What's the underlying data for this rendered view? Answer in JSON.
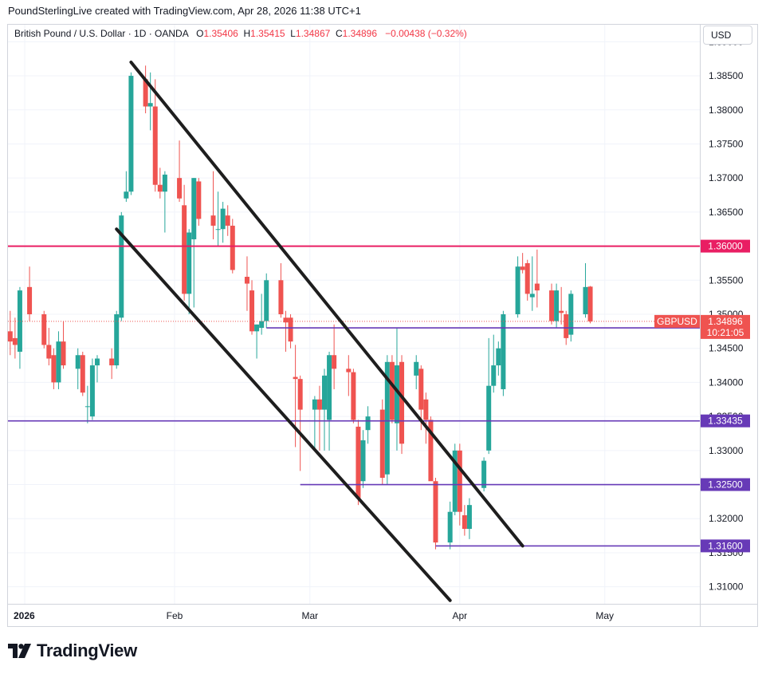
{
  "header": {
    "text": "PoundSterlingLive created with TradingView.com, Apr 28, 2026 11:38 UTC+1"
  },
  "legend": {
    "symbol": "British Pound / U.S. Dollar · 1D · OANDA",
    "o_label": "O",
    "o": "1.35406",
    "h_label": "H",
    "h": "1.35415",
    "l_label": "L",
    "l": "1.34867",
    "c_label": "C",
    "c": "1.34896",
    "change": "−0.00438 (−0.32%)"
  },
  "currency": "USD",
  "logo_text": "TradingView",
  "colors": {
    "up": "#26a69a",
    "down": "#ef5350",
    "resistance": "#e91e63",
    "support": "#673ab7",
    "channel": "#1e1e1e",
    "current": "#ef5350"
  },
  "chart_data": {
    "type": "candlestick",
    "symbol": "GBPUSD",
    "timeframe": "1D",
    "ylim": [
      1.3075,
      1.3925
    ],
    "y_ticks": [
      "1.39000",
      "1.38500",
      "1.38000",
      "1.37500",
      "1.37000",
      "1.36500",
      "1.36000",
      "1.35500",
      "1.35000",
      "1.34500",
      "1.34000",
      "1.33500",
      "1.33000",
      "1.32500",
      "1.32000",
      "1.31500",
      "1.31000"
    ],
    "x_labels": [
      {
        "label": "2026",
        "date": "2026-01-01",
        "bold": true
      },
      {
        "label": "Feb",
        "date": "2026-02-01"
      },
      {
        "label": "Mar",
        "date": "2026-03-01"
      },
      {
        "label": "Apr",
        "date": "2026-04-01"
      },
      {
        "label": "May",
        "date": "2026-05-01"
      }
    ],
    "candles": [
      {
        "d": "2025-12-26",
        "o": 1.345,
        "h": 1.3525,
        "l": 1.344,
        "c": 1.349
      },
      {
        "d": "2025-12-29",
        "o": 1.3475,
        "h": 1.3505,
        "l": 1.344,
        "c": 1.346
      },
      {
        "d": "2025-12-30",
        "o": 1.3465,
        "h": 1.3495,
        "l": 1.3435,
        "c": 1.3455
      },
      {
        "d": "2025-12-31",
        "o": 1.3445,
        "h": 1.354,
        "l": 1.342,
        "c": 1.3535
      },
      {
        "d": "2026-01-02",
        "o": 1.354,
        "h": 1.357,
        "l": 1.349,
        "c": 1.35
      },
      {
        "d": "2026-01-05",
        "o": 1.35,
        "h": 1.3505,
        "l": 1.345,
        "c": 1.3455
      },
      {
        "d": "2026-01-06",
        "o": 1.3455,
        "h": 1.348,
        "l": 1.3425,
        "c": 1.3435
      },
      {
        "d": "2026-01-07",
        "o": 1.344,
        "h": 1.345,
        "l": 1.339,
        "c": 1.34
      },
      {
        "d": "2026-01-08",
        "o": 1.34,
        "h": 1.3475,
        "l": 1.339,
        "c": 1.346
      },
      {
        "d": "2026-01-09",
        "o": 1.346,
        "h": 1.349,
        "l": 1.342,
        "c": 1.3425
      },
      {
        "d": "2026-01-12",
        "o": 1.342,
        "h": 1.345,
        "l": 1.339,
        "c": 1.344
      },
      {
        "d": "2026-01-13",
        "o": 1.344,
        "h": 1.3445,
        "l": 1.338,
        "c": 1.3385
      },
      {
        "d": "2026-01-14",
        "o": 1.3365,
        "h": 1.3395,
        "l": 1.334,
        "c": 1.3365
      },
      {
        "d": "2026-01-15",
        "o": 1.335,
        "h": 1.3435,
        "l": 1.3345,
        "c": 1.3425
      },
      {
        "d": "2026-01-16",
        "o": 1.3425,
        "h": 1.344,
        "l": 1.34,
        "c": 1.3435
      },
      {
        "d": "2026-01-19",
        "o": 1.3435,
        "h": 1.345,
        "l": 1.3405,
        "c": 1.3425
      },
      {
        "d": "2026-01-20",
        "o": 1.3425,
        "h": 1.3505,
        "l": 1.342,
        "c": 1.35
      },
      {
        "d": "2026-01-21",
        "o": 1.3495,
        "h": 1.365,
        "l": 1.349,
        "c": 1.3645
      },
      {
        "d": "2026-01-22",
        "o": 1.367,
        "h": 1.371,
        "l": 1.3665,
        "c": 1.368
      },
      {
        "d": "2026-01-23",
        "o": 1.368,
        "h": 1.3855,
        "l": 1.3675,
        "c": 1.385
      },
      {
        "d": "2026-01-26",
        "o": 1.3845,
        "h": 1.3865,
        "l": 1.3795,
        "c": 1.3805
      },
      {
        "d": "2026-01-27",
        "o": 1.3805,
        "h": 1.3855,
        "l": 1.377,
        "c": 1.381
      },
      {
        "d": "2026-01-28",
        "o": 1.3805,
        "h": 1.3845,
        "l": 1.368,
        "c": 1.369
      },
      {
        "d": "2026-01-29",
        "o": 1.369,
        "h": 1.3715,
        "l": 1.367,
        "c": 1.368
      },
      {
        "d": "2026-01-30",
        "o": 1.368,
        "h": 1.371,
        "l": 1.362,
        "c": 1.3705
      },
      {
        "d": "2026-02-02",
        "o": 1.37,
        "h": 1.3755,
        "l": 1.3665,
        "c": 1.367
      },
      {
        "d": "2026-02-03",
        "o": 1.366,
        "h": 1.369,
        "l": 1.352,
        "c": 1.353
      },
      {
        "d": "2026-02-04",
        "o": 1.353,
        "h": 1.3625,
        "l": 1.35,
        "c": 1.362
      },
      {
        "d": "2026-02-05",
        "o": 1.361,
        "h": 1.37,
        "l": 1.351,
        "c": 1.37
      },
      {
        "d": "2026-02-06",
        "o": 1.3695,
        "h": 1.37,
        "l": 1.363,
        "c": 1.364
      },
      {
        "d": "2026-02-09",
        "o": 1.3645,
        "h": 1.371,
        "l": 1.361,
        "c": 1.363
      },
      {
        "d": "2026-02-10",
        "o": 1.3625,
        "h": 1.368,
        "l": 1.36,
        "c": 1.3625
      },
      {
        "d": "2026-02-11",
        "o": 1.3625,
        "h": 1.3665,
        "l": 1.3605,
        "c": 1.3655
      },
      {
        "d": "2026-02-12",
        "o": 1.3645,
        "h": 1.366,
        "l": 1.3615,
        "c": 1.363
      },
      {
        "d": "2026-02-13",
        "o": 1.363,
        "h": 1.364,
        "l": 1.356,
        "c": 1.3565
      },
      {
        "d": "2026-02-16",
        "o": 1.3555,
        "h": 1.3585,
        "l": 1.3505,
        "c": 1.3545
      },
      {
        "d": "2026-02-17",
        "o": 1.3535,
        "h": 1.355,
        "l": 1.347,
        "c": 1.3475
      },
      {
        "d": "2026-02-18",
        "o": 1.3475,
        "h": 1.3485,
        "l": 1.3435,
        "c": 1.3485
      },
      {
        "d": "2026-02-19",
        "o": 1.348,
        "h": 1.353,
        "l": 1.347,
        "c": 1.349
      },
      {
        "d": "2026-02-20",
        "o": 1.349,
        "h": 1.356,
        "l": 1.348,
        "c": 1.355
      },
      {
        "d": "2026-02-23",
        "o": 1.355,
        "h": 1.3575,
        "l": 1.3495,
        "c": 1.35
      },
      {
        "d": "2026-02-24",
        "o": 1.3495,
        "h": 1.3505,
        "l": 1.3445,
        "c": 1.3488
      },
      {
        "d": "2026-02-25",
        "o": 1.3495,
        "h": 1.35,
        "l": 1.345,
        "c": 1.346
      },
      {
        "d": "2026-02-26",
        "o": 1.3408,
        "h": 1.3455,
        "l": 1.3305,
        "c": 1.3405
      },
      {
        "d": "2026-02-27",
        "o": 1.3405,
        "h": 1.341,
        "l": 1.327,
        "c": 1.336
      },
      {
        "d": "2026-03-02",
        "o": 1.336,
        "h": 1.338,
        "l": 1.33,
        "c": 1.3375
      },
      {
        "d": "2026-03-03",
        "o": 1.3375,
        "h": 1.3395,
        "l": 1.33,
        "c": 1.336
      },
      {
        "d": "2026-03-04",
        "o": 1.336,
        "h": 1.342,
        "l": 1.33,
        "c": 1.341
      },
      {
        "d": "2026-03-05",
        "o": 1.3345,
        "h": 1.3445,
        "l": 1.33,
        "c": 1.344
      },
      {
        "d": "2026-03-06",
        "o": 1.344,
        "h": 1.3485,
        "l": 1.339,
        "c": 1.342
      },
      {
        "d": "2026-03-09",
        "o": 1.342,
        "h": 1.344,
        "l": 1.338,
        "c": 1.3415
      },
      {
        "d": "2026-03-10",
        "o": 1.3415,
        "h": 1.342,
        "l": 1.334,
        "c": 1.3345
      },
      {
        "d": "2026-03-11",
        "o": 1.3335,
        "h": 1.3345,
        "l": 1.322,
        "c": 1.323
      },
      {
        "d": "2026-03-12",
        "o": 1.3255,
        "h": 1.333,
        "l": 1.3245,
        "c": 1.3315
      },
      {
        "d": "2026-03-13",
        "o": 1.333,
        "h": 1.3365,
        "l": 1.331,
        "c": 1.335
      },
      {
        "d": "2026-03-16",
        "o": 1.336,
        "h": 1.3375,
        "l": 1.325,
        "c": 1.326
      },
      {
        "d": "2026-03-17",
        "o": 1.3265,
        "h": 1.344,
        "l": 1.325,
        "c": 1.343
      },
      {
        "d": "2026-03-18",
        "o": 1.343,
        "h": 1.344,
        "l": 1.334,
        "c": 1.3345
      },
      {
        "d": "2026-03-19",
        "o": 1.334,
        "h": 1.348,
        "l": 1.33,
        "c": 1.3425
      },
      {
        "d": "2026-03-20",
        "o": 1.343,
        "h": 1.344,
        "l": 1.3295,
        "c": 1.331
      },
      {
        "d": "2026-03-23",
        "o": 1.341,
        "h": 1.344,
        "l": 1.339,
        "c": 1.343
      },
      {
        "d": "2026-03-24",
        "o": 1.342,
        "h": 1.3425,
        "l": 1.333,
        "c": 1.336
      },
      {
        "d": "2026-03-25",
        "o": 1.3375,
        "h": 1.3385,
        "l": 1.331,
        "c": 1.3345
      },
      {
        "d": "2026-03-26",
        "o": 1.3345,
        "h": 1.335,
        "l": 1.326,
        "c": 1.3255
      },
      {
        "d": "2026-03-27",
        "o": 1.3255,
        "h": 1.326,
        "l": 1.3155,
        "c": 1.3165
      },
      {
        "d": "2026-03-30",
        "o": 1.3165,
        "h": 1.3225,
        "l": 1.3155,
        "c": 1.321
      },
      {
        "d": "2026-03-31",
        "o": 1.321,
        "h": 1.331,
        "l": 1.3205,
        "c": 1.33
      },
      {
        "d": "2026-04-01",
        "o": 1.33,
        "h": 1.331,
        "l": 1.319,
        "c": 1.321
      },
      {
        "d": "2026-04-02",
        "o": 1.3205,
        "h": 1.322,
        "l": 1.3175,
        "c": 1.3185
      },
      {
        "d": "2026-04-03",
        "o": 1.3185,
        "h": 1.323,
        "l": 1.317,
        "c": 1.322
      },
      {
        "d": "2026-04-06",
        "o": 1.3245,
        "h": 1.329,
        "l": 1.324,
        "c": 1.3285
      },
      {
        "d": "2026-04-07",
        "o": 1.33,
        "h": 1.3465,
        "l": 1.3295,
        "c": 1.3395
      },
      {
        "d": "2026-04-08",
        "o": 1.3395,
        "h": 1.347,
        "l": 1.3385,
        "c": 1.3425
      },
      {
        "d": "2026-04-09",
        "o": 1.3425,
        "h": 1.346,
        "l": 1.341,
        "c": 1.345
      },
      {
        "d": "2026-04-10",
        "o": 1.339,
        "h": 1.3505,
        "l": 1.338,
        "c": 1.35
      },
      {
        "d": "2026-04-13",
        "o": 1.35,
        "h": 1.3585,
        "l": 1.3495,
        "c": 1.357
      },
      {
        "d": "2026-04-14",
        "o": 1.357,
        "h": 1.359,
        "l": 1.356,
        "c": 1.3565
      },
      {
        "d": "2026-04-15",
        "o": 1.3575,
        "h": 1.358,
        "l": 1.352,
        "c": 1.353
      },
      {
        "d": "2026-04-16",
        "o": 1.3525,
        "h": 1.3585,
        "l": 1.3505,
        "c": 1.353
      },
      {
        "d": "2026-04-17",
        "o": 1.3545,
        "h": 1.3595,
        "l": 1.351,
        "c": 1.3535
      },
      {
        "d": "2026-04-20",
        "o": 1.3535,
        "h": 1.3545,
        "l": 1.3485,
        "c": 1.349
      },
      {
        "d": "2026-04-21",
        "o": 1.349,
        "h": 1.3545,
        "l": 1.348,
        "c": 1.3535
      },
      {
        "d": "2026-04-22",
        "o": 1.3505,
        "h": 1.354,
        "l": 1.3485,
        "c": 1.3502
      },
      {
        "d": "2026-04-23",
        "o": 1.35,
        "h": 1.3505,
        "l": 1.3455,
        "c": 1.3465
      },
      {
        "d": "2026-04-24",
        "o": 1.347,
        "h": 1.3535,
        "l": 1.346,
        "c": 1.353
      },
      {
        "d": "2026-04-27",
        "o": 1.35,
        "h": 1.3575,
        "l": 1.3495,
        "c": 1.354
      },
      {
        "d": "2026-04-28",
        "o": 1.35406,
        "h": 1.35415,
        "l": 1.34867,
        "c": 1.34896
      }
    ],
    "horizontal_lines": [
      {
        "price": 1.36,
        "label": "1.36000",
        "color": "#e91e63",
        "from": "start"
      },
      {
        "price": 1.348,
        "label": "1.34800",
        "color": "#673ab7",
        "from": "2026-02-20"
      },
      {
        "price": 1.33435,
        "label": "1.33435",
        "color": "#673ab7",
        "from": "start"
      },
      {
        "price": 1.325,
        "label": "1.32500",
        "color": "#673ab7",
        "from": "2026-02-27"
      },
      {
        "price": 1.316,
        "label": "1.31600",
        "color": "#673ab7",
        "from": "2026-03-27"
      }
    ],
    "trend_lines": [
      {
        "from": {
          "d": "2026-01-23",
          "p": 1.387
        },
        "to": {
          "d": "2026-04-14",
          "p": 1.316
        }
      },
      {
        "from": {
          "d": "2026-01-20",
          "p": 1.3625
        },
        "to": {
          "d": "2026-03-30",
          "p": 1.308
        }
      }
    ],
    "current_price": {
      "symbol": "GBPUSD",
      "price": "1.34896",
      "countdown": "10:21:05"
    }
  }
}
